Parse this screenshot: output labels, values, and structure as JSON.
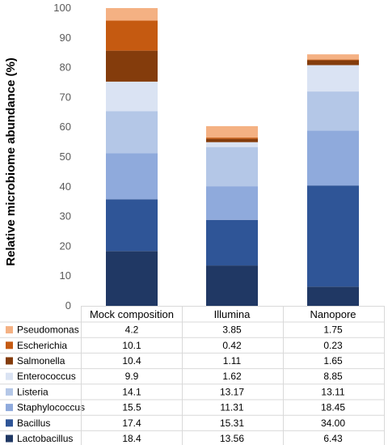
{
  "chart_data": {
    "type": "bar",
    "stacked": true,
    "categories": [
      "Mock composition",
      "Illumina",
      "Nanopore"
    ],
    "ylabel": "Relative microbiome abundance (%)",
    "ylim": [
      0,
      100
    ],
    "yticks": [
      0,
      10,
      20,
      30,
      40,
      50,
      60,
      70,
      80,
      90,
      100
    ],
    "grid": false,
    "legend": "data-table-below",
    "series": [
      {
        "name": "Lactobacillus",
        "color": "#203864",
        "values": [
          18.4,
          13.56,
          6.43
        ],
        "labels": [
          "18.4",
          "13.56",
          "6.43"
        ]
      },
      {
        "name": "Bacillus",
        "color": "#2F5597",
        "values": [
          17.4,
          15.31,
          34.0
        ],
        "labels": [
          "17.4",
          "15.31",
          "34.00"
        ]
      },
      {
        "name": "Staphylococcus",
        "color": "#8FAADC",
        "values": [
          15.5,
          11.31,
          18.45
        ],
        "labels": [
          "15.5",
          "11.31",
          "18.45"
        ]
      },
      {
        "name": "Listeria",
        "color": "#B4C7E7",
        "values": [
          14.1,
          13.17,
          13.11
        ],
        "labels": [
          "14.1",
          "13.17",
          "13.11"
        ]
      },
      {
        "name": "Enterococcus",
        "color": "#DAE3F3",
        "values": [
          9.9,
          1.62,
          8.85
        ],
        "labels": [
          "9.9",
          "1.62",
          "8.85"
        ]
      },
      {
        "name": "Salmonella",
        "color": "#843C0C",
        "values": [
          10.4,
          1.11,
          1.65
        ],
        "labels": [
          "10.4",
          "1.11",
          "1.65"
        ]
      },
      {
        "name": "Escherichia",
        "color": "#C55A11",
        "values": [
          10.1,
          0.42,
          0.23
        ],
        "labels": [
          "10.1",
          "0.42",
          "0.23"
        ]
      },
      {
        "name": "Pseudomonas",
        "color": "#F4B183",
        "values": [
          4.2,
          3.85,
          1.75
        ],
        "labels": [
          "4.2",
          "3.85",
          "1.75"
        ]
      }
    ]
  }
}
